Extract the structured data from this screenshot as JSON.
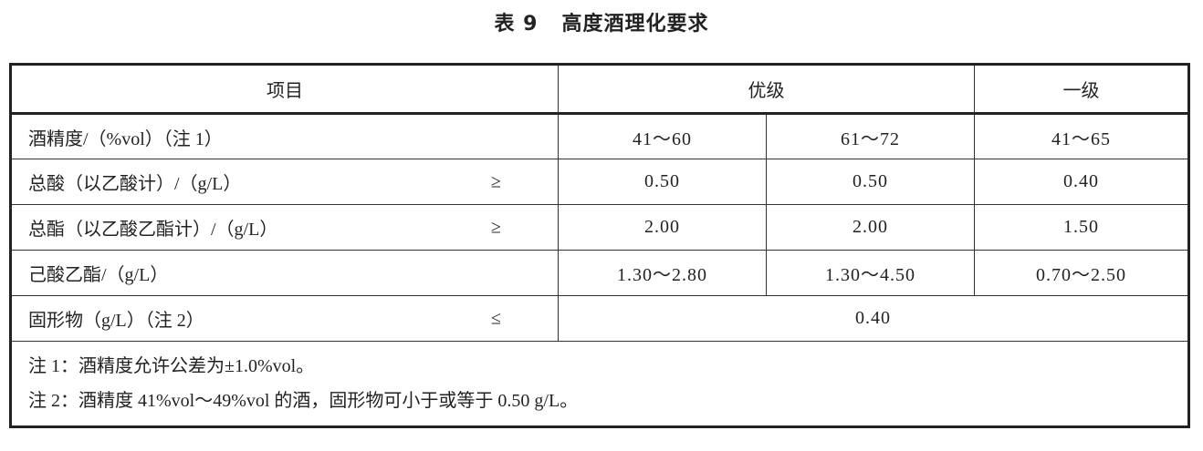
{
  "title": {
    "number": "表 9",
    "text": "高度酒理化要求"
  },
  "table": {
    "headers": [
      "项目",
      "优级",
      "一级"
    ],
    "rows": [
      {
        "item": "酒精度/（%vol）（注 1）",
        "symbol": "",
        "values": [
          "41～60",
          "61～72",
          "41～65"
        ]
      },
      {
        "item": "总酸（以乙酸计）/（g/L）",
        "symbol": "≥",
        "values": [
          "0.50",
          "0.50",
          "0.40"
        ]
      },
      {
        "item": "总酯（以乙酸乙酯计）/（g/L）",
        "symbol": "≥",
        "values": [
          "2.00",
          "2.00",
          "1.50"
        ]
      },
      {
        "item": "己酸乙酯/（g/L）",
        "symbol": "",
        "values": [
          "1.30～2.80",
          "1.30～4.50",
          "0.70～2.50"
        ]
      },
      {
        "item": "固形物（g/L）（注 2）",
        "symbol": "≤",
        "values": [
          "0.40"
        ]
      }
    ],
    "notes": [
      "注 1：酒精度允许公差为±1.0%vol。",
      "注 2：酒精度 41%vol～49%vol 的酒，固形物可小于或等于 0.50 g/L。"
    ]
  }
}
